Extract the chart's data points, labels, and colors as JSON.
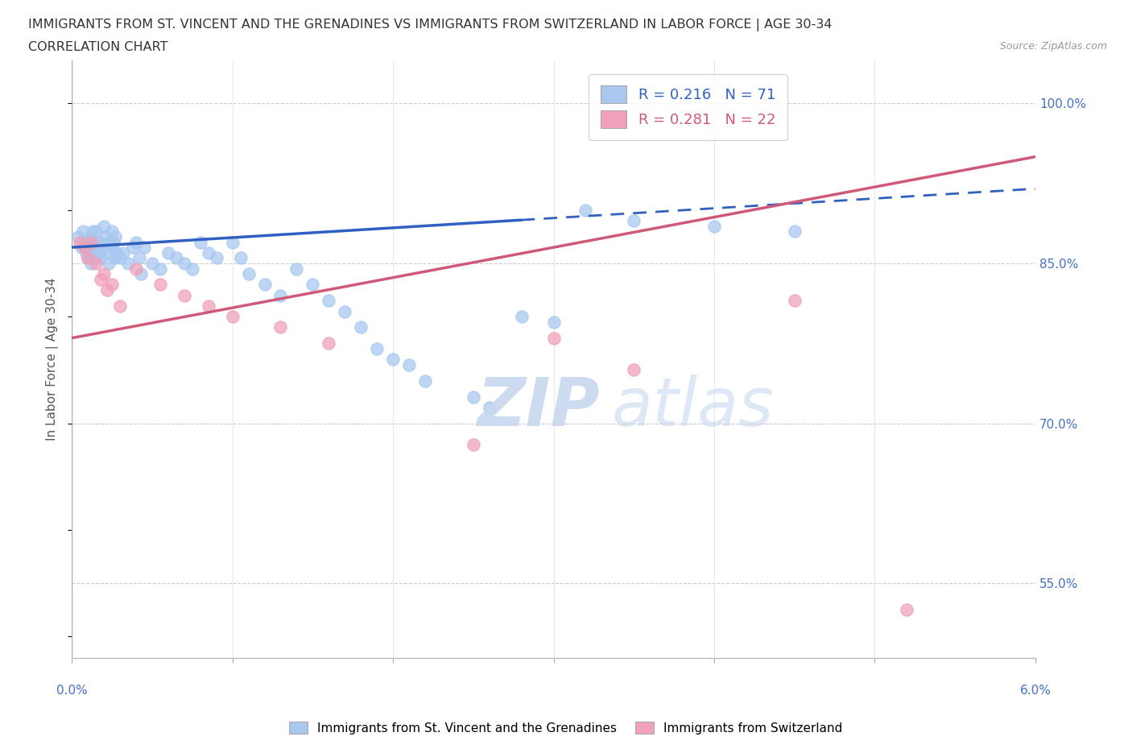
{
  "title_line1": "IMMIGRANTS FROM ST. VINCENT AND THE GRENADINES VS IMMIGRANTS FROM SWITZERLAND IN LABOR FORCE | AGE 30-34",
  "title_line2": "CORRELATION CHART",
  "source_text": "Source: ZipAtlas.com",
  "ylabel": "In Labor Force | Age 30-34",
  "xmin": 0.0,
  "xmax": 6.0,
  "ymin": 48.0,
  "ymax": 104.0,
  "blue_color": "#A8C8F0",
  "pink_color": "#F0A0B8",
  "blue_line_color": "#3060C0",
  "pink_line_color": "#D05878",
  "R_blue": 0.216,
  "N_blue": 71,
  "R_pink": 0.281,
  "N_pink": 22,
  "ytick_positions": [
    55.0,
    70.0,
    85.0,
    100.0
  ],
  "ytick_labels": [
    "55.0%",
    "70.0%",
    "85.0%",
    "100.0%"
  ],
  "blue_line_x0": 0.0,
  "blue_line_y0": 86.5,
  "blue_line_x1": 6.0,
  "blue_line_y1": 92.0,
  "blue_solid_end_x": 2.8,
  "pink_line_x0": 0.0,
  "pink_line_y0": 78.0,
  "pink_line_x1": 6.0,
  "pink_line_y1": 95.0,
  "blue_x": [
    0.04,
    0.06,
    0.07,
    0.08,
    0.09,
    0.1,
    0.1,
    0.11,
    0.12,
    0.12,
    0.13,
    0.13,
    0.14,
    0.14,
    0.15,
    0.15,
    0.16,
    0.17,
    0.18,
    0.18,
    0.2,
    0.2,
    0.21,
    0.22,
    0.23,
    0.24,
    0.25,
    0.25,
    0.26,
    0.27,
    0.27,
    0.28,
    0.3,
    0.32,
    0.35,
    0.38,
    0.4,
    0.42,
    0.43,
    0.45,
    0.5,
    0.55,
    0.6,
    0.65,
    0.7,
    0.75,
    0.8,
    0.85,
    0.9,
    1.0,
    1.05,
    1.1,
    1.2,
    1.3,
    1.4,
    1.5,
    1.6,
    1.7,
    1.8,
    1.9,
    2.0,
    2.1,
    2.2,
    2.5,
    2.6,
    2.8,
    3.0,
    3.2,
    3.5,
    4.0,
    4.5
  ],
  "blue_y": [
    87.5,
    86.5,
    88.0,
    87.0,
    86.0,
    85.5,
    87.0,
    86.5,
    85.0,
    87.5,
    86.0,
    88.0,
    87.0,
    85.5,
    86.5,
    88.0,
    87.0,
    86.0,
    85.5,
    87.0,
    86.5,
    88.5,
    87.5,
    86.0,
    85.0,
    87.0,
    86.5,
    88.0,
    87.0,
    85.5,
    87.5,
    86.0,
    85.5,
    86.0,
    85.0,
    86.5,
    87.0,
    85.5,
    84.0,
    86.5,
    85.0,
    84.5,
    86.0,
    85.5,
    85.0,
    84.5,
    87.0,
    86.0,
    85.5,
    87.0,
    85.5,
    84.0,
    83.0,
    82.0,
    84.5,
    83.0,
    81.5,
    80.5,
    79.0,
    77.0,
    76.0,
    75.5,
    74.0,
    72.5,
    71.5,
    80.0,
    79.5,
    90.0,
    89.0,
    88.5,
    88.0
  ],
  "pink_x": [
    0.05,
    0.08,
    0.1,
    0.12,
    0.15,
    0.18,
    0.2,
    0.22,
    0.25,
    0.3,
    0.4,
    0.55,
    0.7,
    0.85,
    1.0,
    1.3,
    1.6,
    2.5,
    3.0,
    3.5,
    4.5,
    5.2
  ],
  "pink_y": [
    87.0,
    86.5,
    85.5,
    87.0,
    85.0,
    83.5,
    84.0,
    82.5,
    83.0,
    81.0,
    84.5,
    83.0,
    82.0,
    81.0,
    80.0,
    79.0,
    77.5,
    68.0,
    78.0,
    75.0,
    81.5,
    52.5
  ]
}
